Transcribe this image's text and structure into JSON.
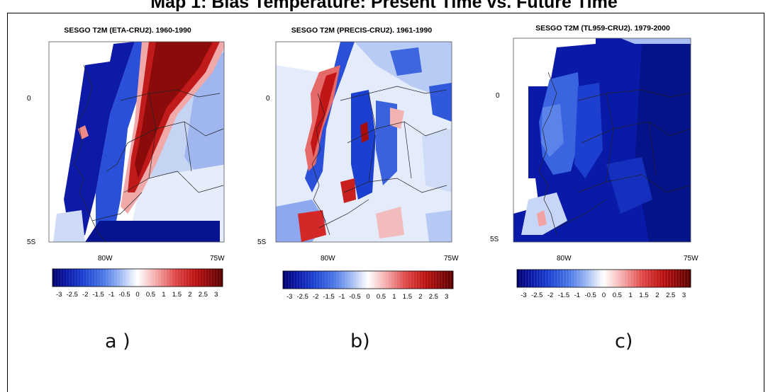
{
  "title": "Map 1: Bias Temperature: Present Time vs. Future Time",
  "colorbar": {
    "ticks": [
      "-3",
      "-2.5",
      "-2",
      "-1.5",
      "-1",
      "-0.5",
      "0",
      "0.5",
      "1",
      "1.5",
      "2",
      "2.5",
      "3"
    ],
    "colors": [
      "#00006b",
      "#0a16a6",
      "#1b3fd0",
      "#3a6ae6",
      "#7aa0f0",
      "#b8caf6",
      "#e8eefc",
      "#ffffff",
      "#fbdede",
      "#f4a3a3",
      "#e35050",
      "#c21616",
      "#8a0000",
      "#5a0000"
    ]
  },
  "panels": [
    {
      "id": "a",
      "title": "SESGO T2M (ETA-CRU2). 1960-1990",
      "label": "a )",
      "lat_labels": [
        "0",
        "5S"
      ],
      "lon_labels": [
        "80W",
        "75W"
      ]
    },
    {
      "id": "b",
      "title": "SESGO T2M (PRECIS-CRU2). 1961-1990",
      "label": "b)",
      "lat_labels": [
        "0",
        "5S"
      ],
      "lon_labels": [
        "80W",
        "75W"
      ]
    },
    {
      "id": "c",
      "title": "SESGO T2M (TL959-CRU2). 1979-2000",
      "label": "c)",
      "lat_labels": [
        "0",
        "5S"
      ],
      "lon_labels": [
        "80W",
        "75W"
      ]
    }
  ]
}
